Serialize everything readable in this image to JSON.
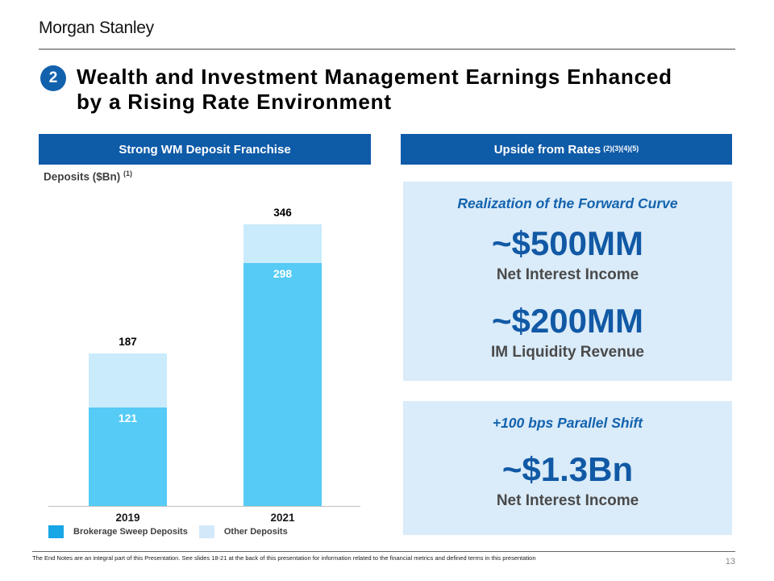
{
  "brand": {
    "logo": "Morgan Stanley"
  },
  "slide": {
    "number_badge": "2",
    "title_line1": "Wealth and Investment Management Earnings Enhanced",
    "title_line2": "by a Rising Rate Environment",
    "footnote": "The End Notes are an integral part of this Presentation. See slides 18-21 at the back of this presentation for information related to the financial metrics and defined terms in this presentation",
    "page_number": "13"
  },
  "left_panel": {
    "header": "Strong WM Deposit Franchise",
    "axis_title": "Deposits ($Bn)",
    "axis_title_footnote": "(1)",
    "legend": [
      {
        "label": "Brokerage Sweep Deposits",
        "color": "#18a6e6"
      },
      {
        "label": "Other Deposits",
        "color": "#d3e9fa"
      }
    ]
  },
  "chart_data": {
    "type": "bar",
    "stacked": true,
    "title": "Deposits ($Bn)",
    "categories": [
      "2019",
      "2021"
    ],
    "series": [
      {
        "name": "Brokerage Sweep Deposits",
        "values": [
          121,
          298
        ],
        "color": "#55cbf5"
      },
      {
        "name": "Other Deposits",
        "values": [
          66,
          48
        ],
        "color": "#c9ebfb"
      }
    ],
    "totals": [
      187,
      346
    ],
    "inside_labels": [
      "121",
      "298"
    ],
    "total_labels": [
      "187",
      "346"
    ],
    "ylim": [
      0,
      383
    ],
    "grid": false,
    "legend_position": "bottom"
  },
  "right_panel": {
    "header": "Upside from Rates",
    "header_footnotes": "(2)(3)(4)(5)",
    "boxes": [
      {
        "heading": "Realization of the Forward Curve",
        "items": [
          {
            "value": "~$500MM",
            "label": "Net Interest Income"
          },
          {
            "value": "~$200MM",
            "label": "IM Liquidity Revenue"
          }
        ]
      },
      {
        "heading": "+100 bps Parallel Shift",
        "items": [
          {
            "value": "~$1.3Bn",
            "label": "Net Interest Income"
          }
        ]
      }
    ]
  },
  "colors": {
    "header_bar": "#0e5ba8",
    "badge": "#1261ad",
    "box_background": "#daebf9",
    "accent_heading": "#1363ae",
    "metric_value": "#1159a5",
    "bar_primary": "#55cbf5",
    "bar_secondary": "#c9ebfb"
  }
}
